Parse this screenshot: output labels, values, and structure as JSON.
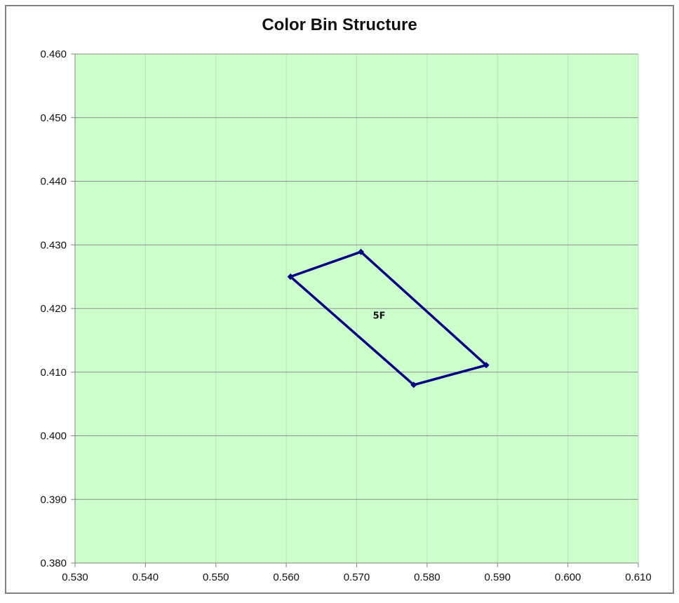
{
  "chart_data": {
    "type": "scatter",
    "title": "Color Bin Structure",
    "xlabel": "",
    "ylabel": "",
    "xlim": [
      0.53,
      0.61
    ],
    "ylim": [
      0.38,
      0.46
    ],
    "x_ticks": [
      "0.530",
      "0.540",
      "0.550",
      "0.560",
      "0.570",
      "0.580",
      "0.590",
      "0.600",
      "0.610"
    ],
    "y_ticks": [
      "0.380",
      "0.390",
      "0.400",
      "0.410",
      "0.420",
      "0.430",
      "0.440",
      "0.450",
      "0.460"
    ],
    "grid": true,
    "plot_background": "#ccffcc",
    "series": [
      {
        "color": "#000080",
        "closed": true,
        "points": [
          {
            "x": 0.5606,
            "y": 0.425
          },
          {
            "x": 0.5706,
            "y": 0.4289
          },
          {
            "x": 0.5884,
            "y": 0.4111
          },
          {
            "x": 0.5781,
            "y": 0.408
          },
          {
            "x": 0.5606,
            "y": 0.425
          }
        ]
      }
    ],
    "annotations": [
      {
        "text": "5F",
        "x": 0.5732,
        "y": 0.4184
      }
    ]
  }
}
